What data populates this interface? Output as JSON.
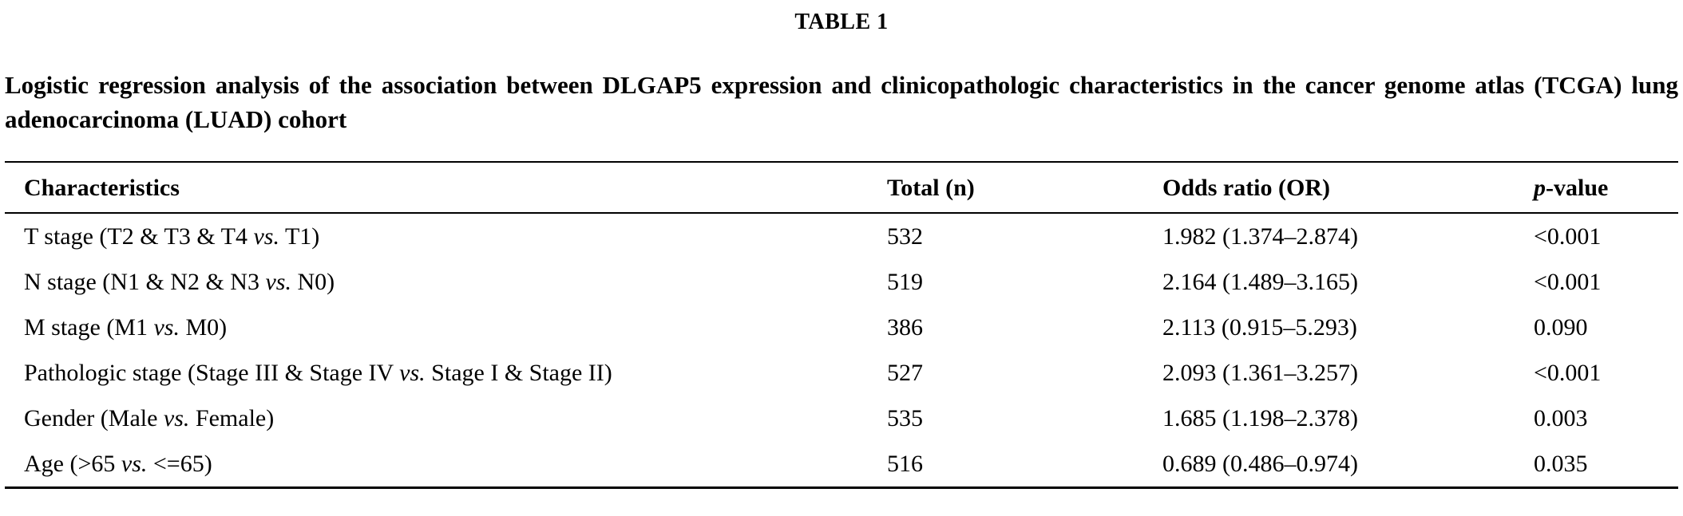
{
  "page": {
    "table_label": "TABLE 1",
    "caption": "Logistic regression analysis of the association between DLGAP5 expression and clinicopathologic characteristics in the cancer genome atlas (TCGA) lung adenocarcinoma (LUAD) cohort"
  },
  "table": {
    "headers": {
      "characteristics": "Characteristics",
      "total": "Total (n)",
      "odds_ratio": "Odds ratio (OR)",
      "p_italic": "p",
      "p_rest": "-value"
    },
    "rows": [
      {
        "char_pre": "T stage (T2 & T3 & T4 ",
        "char_vs": "vs.",
        "char_post": " T1)",
        "total": "532",
        "odds_ratio": "1.982 (1.374–2.874)",
        "p_value": "<0.001"
      },
      {
        "char_pre": "N stage (N1 & N2 & N3 ",
        "char_vs": "vs.",
        "char_post": " N0)",
        "total": "519",
        "odds_ratio": "2.164 (1.489–3.165)",
        "p_value": "<0.001"
      },
      {
        "char_pre": "M stage (M1 ",
        "char_vs": "vs.",
        "char_post": " M0)",
        "total": "386",
        "odds_ratio": "2.113 (0.915–5.293)",
        "p_value": "0.090"
      },
      {
        "char_pre": "Pathologic stage (Stage III & Stage IV ",
        "char_vs": "vs.",
        "char_post": " Stage I & Stage II)",
        "total": "527",
        "odds_ratio": "2.093 (1.361–3.257)",
        "p_value": "<0.001"
      },
      {
        "char_pre": "Gender (Male ",
        "char_vs": "vs.",
        "char_post": " Female)",
        "total": "535",
        "odds_ratio": "1.685 (1.198–2.378)",
        "p_value": "0.003"
      },
      {
        "char_pre": "Age (>65 ",
        "char_vs": "vs.",
        "char_post": " <=65)",
        "total": "516",
        "odds_ratio": "0.689 (0.486–0.974)",
        "p_value": "0.035"
      }
    ]
  }
}
